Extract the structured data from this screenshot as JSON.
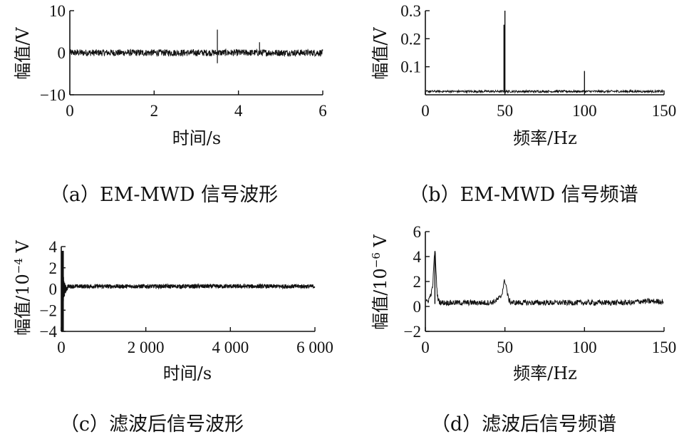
{
  "chart_data": [
    {
      "id": "a",
      "type": "line",
      "caption": "（a）EM-MWD 信号波形",
      "xlabel": "时间/s",
      "ylabel": "幅值/V",
      "xlim": [
        0,
        6
      ],
      "ylim": [
        -10,
        10
      ],
      "xticks": [
        0,
        2,
        4,
        6
      ],
      "yticks": [
        -10,
        0,
        10
      ],
      "xticklabels": [
        "0",
        "2",
        "4",
        "6"
      ],
      "yticklabels": [
        "−10",
        "0",
        "10"
      ],
      "grid": false,
      "description_values": {
        "noise_band_amplitude": 0.8,
        "spikes": [
          {
            "x": 3.5,
            "y": 5.5,
            "y_min": -2.5
          },
          {
            "x": 4.5,
            "y": 2.5,
            "y_min": -0.5
          }
        ]
      }
    },
    {
      "id": "b",
      "type": "line",
      "caption": "（b）EM-MWD 信号频谱",
      "xlabel": "频率/Hz",
      "ylabel": "幅值/V",
      "xlim": [
        0,
        150
      ],
      "ylim": [
        0,
        0.3
      ],
      "xticks": [
        0,
        50,
        100,
        150
      ],
      "yticks": [
        0.1,
        0.2,
        0.3
      ],
      "xticklabels": [
        "0",
        "50",
        "100",
        "150"
      ],
      "yticklabels": [
        "0.1",
        "0.2",
        "0.3"
      ],
      "grid": false,
      "description_values": {
        "noise_floor": 0.012,
        "peaks": [
          {
            "x": 50,
            "y": 0.3
          },
          {
            "x": 50,
            "y": 0.25
          },
          {
            "x": 100,
            "y": 0.085
          }
        ]
      }
    },
    {
      "id": "c",
      "type": "line",
      "caption": "（c）滤波后信号波形",
      "xlabel": "时间/s",
      "ylabel": "幅值/10",
      "ylabel_exp": "−4",
      "ylabel_unit": " V",
      "xlim": [
        0,
        6000
      ],
      "ylim": [
        -4,
        4
      ],
      "xticks": [
        0,
        2000,
        4000,
        6000
      ],
      "yticks": [
        -4,
        -2,
        0,
        2,
        4
      ],
      "xticklabels": [
        "0",
        "2 000",
        "4 000",
        "6 000"
      ],
      "yticklabels": [
        "−4",
        "−2",
        "0",
        "2",
        "4"
      ],
      "grid": false,
      "description_values": {
        "initial_transient_end_s": 150,
        "initial_amplitude": 4,
        "steady_band": [
          0,
          0.45
        ]
      }
    },
    {
      "id": "d",
      "type": "line",
      "caption": "（d）滤波后信号频谱",
      "xlabel": "频率/Hz",
      "ylabel": "幅值/10",
      "ylabel_exp": "−6",
      "ylabel_unit": " V",
      "xlim": [
        0,
        150
      ],
      "ylim": [
        -2,
        6
      ],
      "xticks": [
        0,
        50,
        100,
        150
      ],
      "yticks": [
        -2,
        0,
        2,
        4,
        6
      ],
      "xticklabels": [
        "0",
        "50",
        "100",
        "150"
      ],
      "yticklabels": [
        "−2",
        "0",
        "2",
        "4",
        "6"
      ],
      "grid": false,
      "description_values": {
        "noise_floor": 0.3,
        "peaks": [
          {
            "x": 6,
            "y": 4.4
          },
          {
            "x": 50,
            "y": 1.8
          }
        ]
      }
    }
  ]
}
